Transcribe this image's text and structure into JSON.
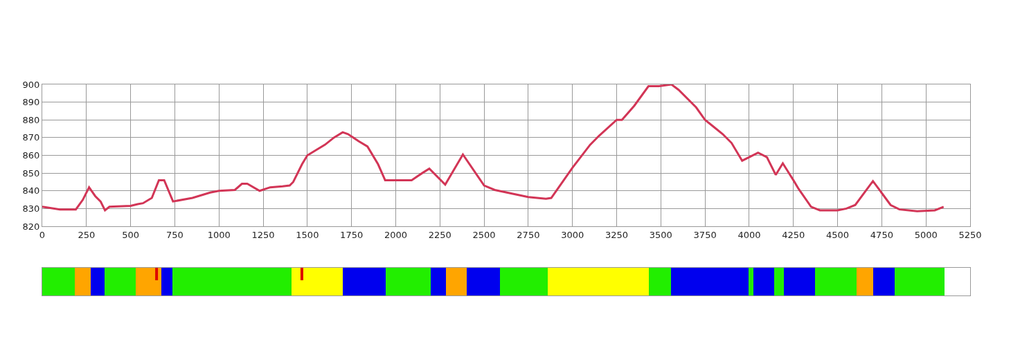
{
  "chart_data": [
    {
      "type": "line",
      "x": [
        0,
        100,
        190,
        230,
        265,
        300,
        330,
        355,
        380,
        500,
        540,
        570,
        620,
        660,
        690,
        740,
        850,
        950,
        1000,
        1090,
        1130,
        1160,
        1230,
        1290,
        1360,
        1400,
        1420,
        1470,
        1500,
        1550,
        1600,
        1650,
        1700,
        1730,
        1790,
        1840,
        1900,
        1940,
        2000,
        2090,
        2150,
        2190,
        2280,
        2380,
        2500,
        2560,
        2750,
        2850,
        2880,
        3000,
        3100,
        3150,
        3250,
        3280,
        3350,
        3430,
        3490,
        3560,
        3600,
        3700,
        3750,
        3800,
        3850,
        3900,
        3960,
        4000,
        4050,
        4100,
        4150,
        4190,
        4250,
        4280,
        4350,
        4400,
        4500,
        4550,
        4600,
        4700,
        4800,
        4850,
        4950,
        5050,
        5100
      ],
      "series": [
        {
          "color": "#d23556",
          "values": [
            831,
            829.5,
            829.5,
            835,
            842,
            837,
            834,
            829,
            831,
            831.5,
            832.5,
            833,
            836,
            846,
            846,
            834,
            836,
            839,
            840,
            840.5,
            844,
            844,
            840,
            842,
            842.5,
            843,
            845,
            855,
            860,
            863,
            866,
            870,
            873,
            872,
            868,
            865,
            855,
            846,
            846,
            846,
            850,
            852.5,
            843.5,
            860.5,
            843,
            840.5,
            836.5,
            835.5,
            836,
            853,
            866,
            871,
            880,
            880,
            888,
            899,
            899,
            900,
            897,
            887,
            880,
            876,
            872,
            867,
            857,
            859,
            861.5,
            859,
            849,
            855.5,
            846,
            841,
            831,
            829,
            829,
            830,
            832,
            845.5,
            832,
            829.5,
            828.5,
            829,
            831
          ]
        }
      ],
      "xlim": [
        0,
        5250
      ],
      "xticks": [
        0,
        250,
        500,
        750,
        1000,
        1250,
        1500,
        1750,
        2000,
        2250,
        2500,
        2750,
        3000,
        3250,
        3500,
        3750,
        4000,
        4250,
        4500,
        4750,
        5000,
        5250
      ],
      "ylim": [
        820,
        900
      ],
      "yticks": [
        820,
        830,
        840,
        850,
        860,
        870,
        880,
        890,
        900
      ],
      "grid": true,
      "marker": "none",
      "line_style": "solid"
    },
    {
      "type": "bar",
      "orientation": "horizontal",
      "stacked": true,
      "categories": [
        null
      ],
      "xlim": [
        0,
        5250
      ],
      "tick_labels": false,
      "series": [
        {
          "color": "#22ee00",
          "values": [
            184
          ]
        },
        {
          "color": "#ffa500",
          "values": [
            90
          ]
        },
        {
          "color": "#0000ee",
          "values": [
            79
          ]
        },
        {
          "color": "#22ee00",
          "values": [
            176
          ]
        },
        {
          "color": "#ffa500",
          "values": [
            145
          ]
        },
        {
          "color": "#0000ee",
          "values": [
            63
          ]
        },
        {
          "color": "#22ee00",
          "values": [
            674
          ]
        },
        {
          "color": "#ffff00",
          "values": [
            290
          ]
        },
        {
          "color": "#0000ee",
          "values": [
            243
          ]
        },
        {
          "color": "#22ee00",
          "values": [
            254
          ]
        },
        {
          "color": "#0000ee",
          "values": [
            87
          ]
        },
        {
          "color": "#ffa500",
          "values": [
            117
          ]
        },
        {
          "color": "#0000ee",
          "values": [
            188
          ]
        },
        {
          "color": "#22ee00",
          "values": [
            270
          ]
        },
        {
          "color": "#ffff00",
          "values": [
            573
          ]
        },
        {
          "color": "#22ee00",
          "values": [
            125
          ]
        },
        {
          "color": "#0000ee",
          "values": [
            439
          ]
        },
        {
          "color": "#22ee00",
          "values": [
            27
          ]
        },
        {
          "color": "#0000ee",
          "values": [
            118
          ]
        },
        {
          "color": "#22ee00",
          "values": [
            55
          ]
        },
        {
          "color": "#0000ee",
          "values": [
            176
          ]
        },
        {
          "color": "#22ee00",
          "values": [
            235
          ]
        },
        {
          "color": "#ffa500",
          "values": [
            94
          ]
        },
        {
          "color": "#0000ee",
          "values": [
            122
          ]
        },
        {
          "color": "#22ee00",
          "values": [
            282
          ]
        }
      ],
      "ref_lines": [
        {
          "axis": "x",
          "value": 647,
          "color": "#dd0000"
        },
        {
          "axis": "x",
          "value": 1469,
          "color": "#dd0000"
        }
      ]
    }
  ]
}
